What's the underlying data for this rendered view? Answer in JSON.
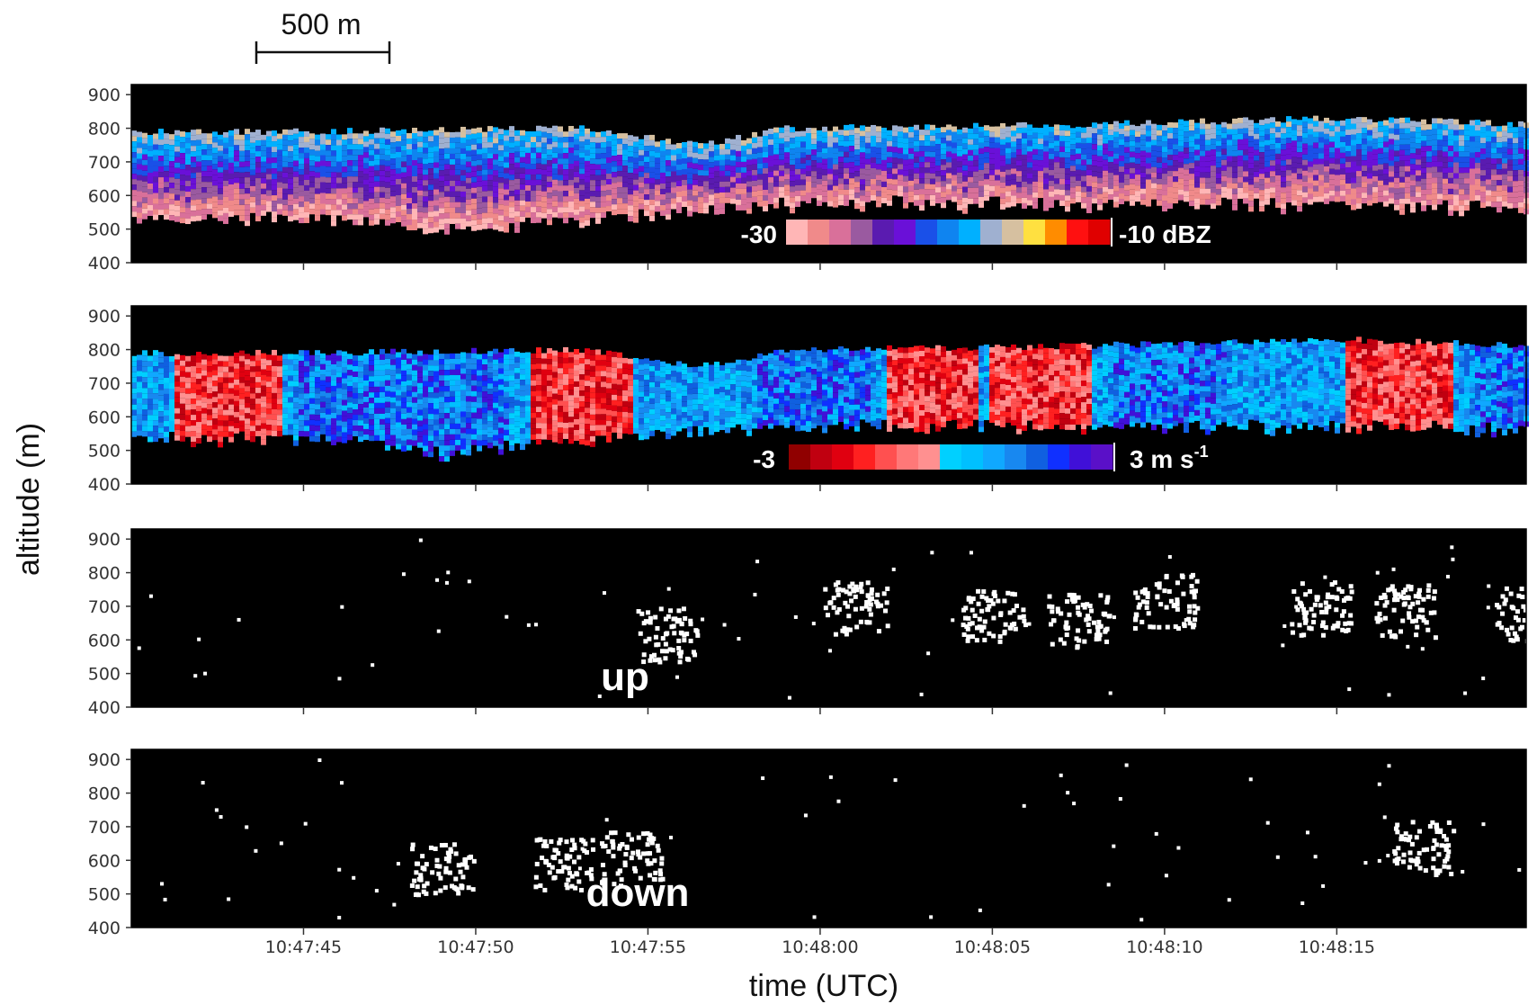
{
  "scale_bar": {
    "label": "500 m"
  },
  "x_axis_title": "time (UTC)",
  "y_axis_title": "altitude (m)",
  "colorbars": {
    "reflectivity": {
      "min_label": "-30",
      "max_label": "-10 dBZ",
      "colors": [
        "#ffb6b6",
        "#f08a8a",
        "#d9709a",
        "#9a5aa0",
        "#5a1bb0",
        "#6a10d8",
        "#1a50e8",
        "#0f84f0",
        "#00b0ff",
        "#9fb0d0",
        "#d6c0a0",
        "#ffe040",
        "#ff8c00",
        "#ff1010",
        "#e00000"
      ]
    },
    "velocity": {
      "min_label": "-3",
      "max_label_base": "3 m s",
      "max_label_sup": "-1",
      "colors": [
        "#900000",
        "#c00010",
        "#e00010",
        "#ff2020",
        "#ff5050",
        "#ff7878",
        "#ff9090",
        "#00d0ff",
        "#00c0ff",
        "#10a8ff",
        "#1888f0",
        "#1060e0",
        "#1030ff",
        "#4010d8",
        "#5a10c8"
      ]
    }
  },
  "panel_labels": {
    "up": "up",
    "down": "down"
  },
  "colors": {
    "background": "#000000",
    "cloud_signal": "#ffffff"
  },
  "chart_data": [
    {
      "type": "heatmap",
      "field": "radar reflectivity",
      "units": "dBZ",
      "color_range": [
        -30,
        -10
      ],
      "x_ticks": [
        "10:47:45",
        "10:47:50",
        "10:47:55",
        "10:48:00",
        "10:48:05",
        "10:48:10",
        "10:48:15"
      ],
      "y_ticks": [
        400,
        500,
        600,
        700,
        800,
        900
      ],
      "ylim": [
        400,
        930
      ],
      "cloud_top_m": [
        {
          "t": 0,
          "v": 790
        },
        {
          "t": 8,
          "v": 800
        },
        {
          "t": 11.5,
          "v": 750
        },
        {
          "t": 14,
          "v": 800
        },
        {
          "t": 22,
          "v": 810
        },
        {
          "t": 30,
          "v": 830
        },
        {
          "t": 36,
          "v": 810
        }
      ],
      "cloud_base_m": [
        {
          "t": 0,
          "v": 560
        },
        {
          "t": 4,
          "v": 520
        },
        {
          "t": 9,
          "v": 560
        },
        {
          "t": 14,
          "v": 600
        },
        {
          "t": 22,
          "v": 600
        },
        {
          "t": 36,
          "v": 590
        }
      ]
    },
    {
      "type": "heatmap",
      "field": "Doppler vertical velocity",
      "units": "m s-1",
      "color_range": [
        -3,
        3
      ],
      "x_ticks": [
        "10:47:45",
        "10:47:50",
        "10:47:55",
        "10:48:00",
        "10:48:05",
        "10:48:10",
        "10:48:15"
      ],
      "y_ticks": [
        400,
        500,
        600,
        700,
        800,
        900
      ],
      "ylim": [
        400,
        930
      ]
    },
    {
      "type": "heatmap",
      "field": "updraft mask",
      "label": "up",
      "x_ticks": [
        "10:47:45",
        "10:47:50",
        "10:47:55",
        "10:48:00",
        "10:48:05",
        "10:48:10",
        "10:48:15"
      ],
      "y_ticks": [
        400,
        500,
        600,
        700,
        800,
        900
      ],
      "ylim": [
        400,
        930
      ],
      "clusters": [
        {
          "t": 10.5,
          "alt": 620
        },
        {
          "t": 16,
          "alt": 700
        },
        {
          "t": 20,
          "alt": 680
        },
        {
          "t": 22.5,
          "alt": 660
        },
        {
          "t": 25,
          "alt": 720
        },
        {
          "t": 29.5,
          "alt": 700
        },
        {
          "t": 32,
          "alt": 690
        },
        {
          "t": 35.5,
          "alt": 680
        }
      ]
    },
    {
      "type": "heatmap",
      "field": "downdraft mask",
      "label": "down",
      "x_ticks": [
        "10:47:45",
        "10:47:50",
        "10:47:55",
        "10:48:00",
        "10:48:05",
        "10:48:10",
        "10:48:15"
      ],
      "y_ticks": [
        400,
        500,
        600,
        700,
        800,
        900
      ],
      "ylim": [
        400,
        930
      ],
      "clusters": [
        {
          "t": 4,
          "alt": 580
        },
        {
          "t": 7.5,
          "alt": 590
        },
        {
          "t": 9.5,
          "alt": 610
        },
        {
          "t": 32.5,
          "alt": 640
        }
      ]
    }
  ]
}
